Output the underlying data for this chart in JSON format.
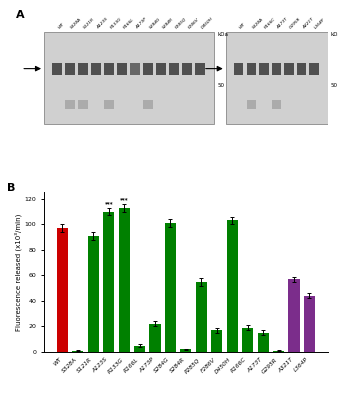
{
  "bar_labels": [
    "WT",
    "S328A",
    "S121R",
    "A123S",
    "R133G",
    "R166L",
    "A173P",
    "S284G",
    "S284R",
    "P285Q",
    "F286V",
    "D450H",
    "R166C",
    "A173T",
    "G295R",
    "A321T",
    "L364P"
  ],
  "bar_values": [
    97,
    1,
    91,
    110,
    113,
    5,
    22,
    101,
    2,
    55,
    17,
    103,
    19,
    15,
    1,
    57,
    44
  ],
  "bar_errors": [
    3,
    0.5,
    3,
    3,
    3,
    1,
    2,
    3,
    0.5,
    3,
    2,
    3,
    2,
    2,
    0.5,
    2,
    2
  ],
  "bar_colors": [
    "#cc0000",
    "#008000",
    "#008000",
    "#008000",
    "#008000",
    "#008000",
    "#008000",
    "#008000",
    "#008000",
    "#008000",
    "#008000",
    "#008000",
    "#008000",
    "#008000",
    "#008000",
    "#7b2d8b",
    "#7b2d8b"
  ],
  "has_hash": [
    false,
    true,
    false,
    false,
    false,
    true,
    true,
    false,
    true,
    true,
    true,
    false,
    true,
    true,
    true,
    true,
    true
  ],
  "has_stars": [
    false,
    false,
    false,
    true,
    true,
    false,
    false,
    false,
    false,
    false,
    false,
    false,
    false,
    false,
    false,
    false,
    false
  ],
  "star_text": [
    "",
    "",
    "",
    "***",
    "***",
    "",
    "",
    "",
    "",
    "",
    "",
    "",
    "",
    "",
    "",
    "",
    ""
  ],
  "ylabel": "Fluorescence released (x10³/min)",
  "ylim": [
    0,
    125
  ],
  "yticks": [
    0,
    20,
    40,
    60,
    80,
    100,
    120
  ],
  "left_blot_labels": [
    "WT",
    "S328A",
    "S121R",
    "A123S",
    "R133G",
    "R166L",
    "A173P",
    "S284G",
    "S284R",
    "P285Q",
    "F286V",
    "D450H"
  ],
  "right_blot_labels": [
    "WT",
    "S328A",
    "R166C",
    "A173T",
    "G295R",
    "A321T",
    "L364P"
  ],
  "green_color": "#008000",
  "purple_color": "#7b2d8b",
  "red_color": "#cc0000"
}
